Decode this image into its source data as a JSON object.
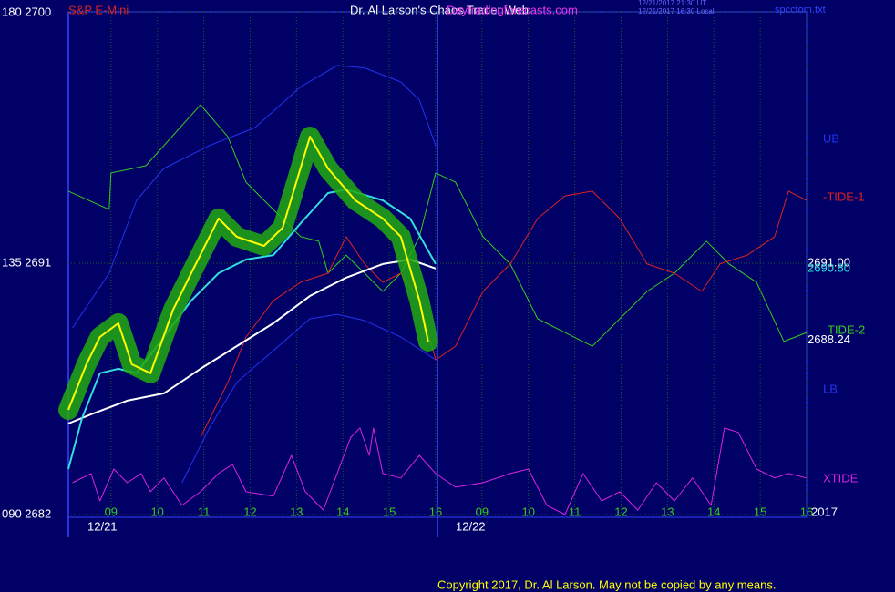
{
  "chart_data": {
    "type": "line",
    "title": "Dr. Al Larson's Chaos Trader Web",
    "annotations": [
      "S&P E-Mini",
      "Daytradingforecasts.com",
      "12/21/2017 21:30 UT",
      "12/21/2017 16:30 Local",
      "spcctom.txt",
      "12/21",
      "12/22",
      "2017",
      "Copyright 2017, Dr. Al Larson. May not be copied by any means."
    ],
    "xlim": [
      -0.92,
      15
    ],
    "ylim": [
      2682,
      2700
    ],
    "yticks": [
      {
        "value": 2700,
        "label": "180  2700"
      },
      {
        "value": 2691,
        "label": "135  2691"
      },
      {
        "value": 2682,
        "label": "090  2682"
      }
    ],
    "xticks": [
      {
        "value": 0,
        "label": "09"
      },
      {
        "value": 1,
        "label": "10"
      },
      {
        "value": 2,
        "label": "11"
      },
      {
        "value": 3,
        "label": "12"
      },
      {
        "value": 4,
        "label": "13"
      },
      {
        "value": 5,
        "label": "14"
      },
      {
        "value": 6,
        "label": "15"
      },
      {
        "value": 7,
        "label": "16"
      },
      {
        "value": 8,
        "label": "09"
      },
      {
        "value": 9,
        "label": "10"
      },
      {
        "value": 10,
        "label": "11"
      },
      {
        "value": 11,
        "label": "12"
      },
      {
        "value": 12,
        "label": "13"
      },
      {
        "value": 13,
        "label": "14"
      },
      {
        "value": 14,
        "label": "15"
      },
      {
        "value": 15,
        "label": "16"
      }
    ],
    "grid": true,
    "right_labels": [
      {
        "value": 2691.0,
        "label": "2691.00",
        "color": "#ffffff"
      },
      {
        "value": 2690.8,
        "label": "2690.80",
        "color": "#33dddd"
      },
      {
        "value": 2688.24,
        "label": "2688.24",
        "color": "#ffffff"
      }
    ],
    "series": [
      {
        "name": "UB",
        "color": "#2233ee",
        "width": 1,
        "x": [
          -0.83,
          -0.04,
          0.55,
          1.14,
          2.12,
          3.11,
          4.09,
          4.88,
          5.47,
          6.25,
          6.65,
          7.0
        ],
        "values": [
          2688.69,
          2690.64,
          2693.25,
          2694.39,
          2695.21,
          2695.86,
          2697.32,
          2698.08,
          2697.99,
          2697.49,
          2696.84,
          2695.21
        ]
      },
      {
        "name": "LB",
        "color": "#2233ee",
        "width": 1,
        "x": [
          1.53,
          2.12,
          2.71,
          3.5,
          4.29,
          4.88,
          5.47,
          6.25,
          7.0
        ],
        "values": [
          2683.14,
          2685.1,
          2686.73,
          2687.87,
          2689.01,
          2689.17,
          2688.95,
          2688.36,
          2687.54
        ]
      },
      {
        "name": "TIDE-2",
        "color": "#33cc22",
        "width": 1,
        "x": [
          -0.92,
          -0.04,
          0,
          0.75,
          1.93,
          2.52,
          2.91,
          3.5,
          4.09,
          4.48,
          4.68,
          5.07,
          5.47,
          5.86,
          6.25,
          6.65,
          7.0,
          7.43,
          8.02,
          8.61,
          9.2,
          9.79,
          10.38,
          10.97,
          11.56,
          12.15,
          12.54,
          12.84,
          13.33,
          13.92,
          14.51,
          15
        ],
        "values": [
          2693.58,
          2692.92,
          2694.23,
          2694.49,
          2696.67,
          2695.53,
          2693.9,
          2692.92,
          2691.95,
          2691.79,
          2690.64,
          2691.29,
          2690.64,
          2689.99,
          2690.64,
          2691.95,
          2694.23,
          2693.9,
          2691.95,
          2690.97,
          2689.01,
          2688.52,
          2688.03,
          2689.01,
          2689.99,
          2690.64,
          2691.29,
          2691.79,
          2690.97,
          2690.32,
          2688.2,
          2688.52
        ]
      },
      {
        "name": "-TIDE-1",
        "color": "#dd2222",
        "width": 1,
        "x": [
          1.93,
          2.52,
          2.91,
          3.5,
          4.09,
          4.68,
          5.07,
          5.47,
          5.86,
          6.25,
          6.65,
          7.0,
          7.43,
          8.02,
          8.61,
          9.2,
          9.79,
          10.38,
          10.97,
          11.56,
          12.15,
          12.74,
          13.13,
          13.72,
          14.31,
          14.61,
          15
        ],
        "values": [
          2684.77,
          2686.73,
          2688.36,
          2689.66,
          2690.32,
          2690.64,
          2691.95,
          2690.97,
          2690.32,
          2690.64,
          2689.66,
          2687.54,
          2688.03,
          2689.99,
          2690.97,
          2692.6,
          2693.41,
          2693.58,
          2692.6,
          2690.97,
          2690.64,
          2689.99,
          2690.97,
          2691.29,
          2691.95,
          2693.58,
          2693.25
        ]
      },
      {
        "name": "XTIDE",
        "color": "#dd22dd",
        "width": 1,
        "x": [
          -0.83,
          -0.43,
          -0.24,
          0.06,
          0.35,
          0.65,
          0.85,
          1.14,
          1.53,
          1.93,
          2.32,
          2.62,
          2.91,
          3.5,
          3.89,
          4.19,
          4.58,
          5.17,
          5.37,
          5.57,
          5.66,
          5.86,
          6.25,
          6.65,
          7.0,
          7.43,
          8.02,
          8.61,
          9.0,
          9.4,
          9.79,
          10.18,
          10.58,
          10.97,
          11.36,
          11.76,
          12.15,
          12.54,
          12.94,
          13.23,
          13.53,
          13.92,
          14.31,
          14.61,
          15.0
        ],
        "values": [
          2683.14,
          2683.47,
          2682.49,
          2683.63,
          2683.14,
          2683.47,
          2682.82,
          2683.31,
          2682.33,
          2682.82,
          2683.47,
          2683.8,
          2682.82,
          2682.66,
          2684.12,
          2682.82,
          2682.16,
          2684.77,
          2685.1,
          2684.12,
          2685.1,
          2683.47,
          2683.31,
          2684.12,
          2683.47,
          2682.98,
          2683.14,
          2683.47,
          2683.63,
          2682.33,
          2682.0,
          2683.47,
          2682.49,
          2682.82,
          2682.16,
          2683.14,
          2682.49,
          2683.31,
          2682.33,
          2685.1,
          2684.94,
          2683.63,
          2683.31,
          2683.47,
          2683.31
        ]
      },
      {
        "color": "#ffffff",
        "width": 2,
        "x": [
          -0.92,
          -0.43,
          0.35,
          1.14,
          1.93,
          2.71,
          3.5,
          4.29,
          5.07,
          5.86,
          6.45,
          7.0
        ],
        "values": [
          2685.26,
          2685.59,
          2686.08,
          2686.34,
          2687.22,
          2688.03,
          2688.85,
          2689.83,
          2690.48,
          2690.97,
          2691.13,
          2690.81
        ]
      },
      {
        "color": "#33dddd",
        "width": 2,
        "x": [
          -0.92,
          -0.63,
          -0.24,
          0.16,
          0.55,
          1.14,
          1.73,
          2.32,
          2.91,
          3.5,
          4.09,
          4.68,
          5.07,
          5.86,
          6.45,
          7.0
        ],
        "values": [
          2683.63,
          2685.43,
          2687.06,
          2687.22,
          2687.06,
          2688.36,
          2689.66,
          2690.64,
          2691.13,
          2691.29,
          2692.43,
          2693.51,
          2693.64,
          2693.25,
          2692.6,
          2690.97
        ]
      },
      {
        "color": "#ffff00",
        "width": 2,
        "halo": "#22aa11",
        "x": [
          -0.92,
          -0.53,
          -0.24,
          0.16,
          0.45,
          0.85,
          1.34,
          1.73,
          2.32,
          2.71,
          3.3,
          3.7,
          4.29,
          4.68,
          5.27,
          5.86,
          6.25,
          6.65,
          6.84
        ],
        "values": [
          2685.75,
          2687.38,
          2688.36,
          2688.85,
          2687.38,
          2687.06,
          2689.34,
          2690.64,
          2692.6,
          2691.95,
          2691.62,
          2692.27,
          2695.53,
          2694.39,
          2693.25,
          2692.6,
          2691.95,
          2689.66,
          2688.2
        ]
      }
    ]
  }
}
